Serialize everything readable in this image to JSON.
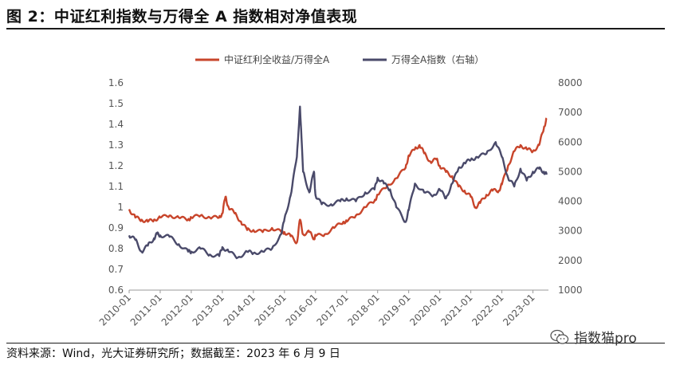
{
  "figure": {
    "title": "图 2：中证红利指数与万得全 A 指数相对净值表现",
    "source": "资料来源：Wind，光大证券研究所；数据截至：2023 年 6 月 9 日",
    "watermark": "指数猫pro",
    "watermark_icon": "wechat-icon"
  },
  "chart_data": {
    "type": "line",
    "legend_position": "top-center",
    "grid": false,
    "x_ticks": [
      "2010-01",
      "2011-01",
      "2012-01",
      "2013-01",
      "2014-01",
      "2015-01",
      "2016-01",
      "2017-01",
      "2018-01",
      "2019-01",
      "2020-01",
      "2021-01",
      "2022-01",
      "2023-01"
    ],
    "y_left": {
      "range": [
        0.6,
        1.6
      ],
      "ticks": [
        "0.6",
        "0.7",
        "0.8",
        "0.9",
        "1",
        "1.1",
        "1.2",
        "1.3",
        "1.4",
        "1.5",
        "1.6"
      ]
    },
    "y_right": {
      "range": [
        1000,
        8000
      ],
      "ticks": [
        "1000",
        "2000",
        "3000",
        "4000",
        "5000",
        "6000",
        "7000",
        "8000"
      ]
    },
    "series": [
      {
        "name": "中证红利全收益/万得全A",
        "axis": "left",
        "color": "#C8452B",
        "points": [
          [
            2010.0,
            0.99
          ],
          [
            2010.2,
            0.95
          ],
          [
            2010.4,
            0.94
          ],
          [
            2010.6,
            0.93
          ],
          [
            2010.8,
            0.94
          ],
          [
            2011.0,
            0.95
          ],
          [
            2011.3,
            0.96
          ],
          [
            2011.6,
            0.95
          ],
          [
            2011.9,
            0.94
          ],
          [
            2012.0,
            0.95
          ],
          [
            2012.3,
            0.96
          ],
          [
            2012.6,
            0.95
          ],
          [
            2012.9,
            0.95
          ],
          [
            2013.0,
            0.97
          ],
          [
            2013.1,
            1.05
          ],
          [
            2013.2,
            1.0
          ],
          [
            2013.4,
            0.97
          ],
          [
            2013.6,
            0.93
          ],
          [
            2013.8,
            0.89
          ],
          [
            2014.0,
            0.89
          ],
          [
            2014.3,
            0.88
          ],
          [
            2014.6,
            0.9
          ],
          [
            2014.9,
            0.88
          ],
          [
            2015.0,
            0.88
          ],
          [
            2015.2,
            0.86
          ],
          [
            2015.4,
            0.83
          ],
          [
            2015.5,
            0.94
          ],
          [
            2015.6,
            0.87
          ],
          [
            2015.8,
            0.88
          ],
          [
            2015.95,
            0.85
          ],
          [
            2016.0,
            0.86
          ],
          [
            2016.3,
            0.87
          ],
          [
            2016.6,
            0.9
          ],
          [
            2016.9,
            0.93
          ],
          [
            2017.0,
            0.93
          ],
          [
            2017.3,
            0.96
          ],
          [
            2017.6,
            1.0
          ],
          [
            2017.9,
            1.03
          ],
          [
            2018.0,
            1.06
          ],
          [
            2018.3,
            1.1
          ],
          [
            2018.6,
            1.14
          ],
          [
            2018.9,
            1.19
          ],
          [
            2019.0,
            1.25
          ],
          [
            2019.2,
            1.28
          ],
          [
            2019.35,
            1.3
          ],
          [
            2019.5,
            1.26
          ],
          [
            2019.7,
            1.22
          ],
          [
            2019.9,
            1.23
          ],
          [
            2020.0,
            1.2
          ],
          [
            2020.2,
            1.17
          ],
          [
            2020.4,
            1.15
          ],
          [
            2020.6,
            1.1
          ],
          [
            2020.8,
            1.08
          ],
          [
            2021.0,
            1.05
          ],
          [
            2021.15,
            1.0
          ],
          [
            2021.3,
            1.02
          ],
          [
            2021.5,
            1.06
          ],
          [
            2021.7,
            1.08
          ],
          [
            2021.9,
            1.08
          ],
          [
            2022.0,
            1.11
          ],
          [
            2022.2,
            1.2
          ],
          [
            2022.4,
            1.27
          ],
          [
            2022.6,
            1.3
          ],
          [
            2022.8,
            1.28
          ],
          [
            2023.0,
            1.27
          ],
          [
            2023.2,
            1.3
          ],
          [
            2023.35,
            1.38
          ],
          [
            2023.44,
            1.43
          ]
        ]
      },
      {
        "name": "万得全A指数（右轴）",
        "axis": "right",
        "color": "#4A4A6A",
        "points": [
          [
            2010.0,
            2850
          ],
          [
            2010.2,
            2700
          ],
          [
            2010.4,
            2300
          ],
          [
            2010.6,
            2500
          ],
          [
            2010.8,
            2750
          ],
          [
            2010.9,
            2900
          ],
          [
            2011.0,
            2850
          ],
          [
            2011.3,
            2800
          ],
          [
            2011.6,
            2550
          ],
          [
            2011.9,
            2300
          ],
          [
            2012.0,
            2300
          ],
          [
            2012.3,
            2400
          ],
          [
            2012.6,
            2200
          ],
          [
            2012.9,
            2150
          ],
          [
            2013.0,
            2450
          ],
          [
            2013.2,
            2300
          ],
          [
            2013.5,
            2100
          ],
          [
            2013.8,
            2300
          ],
          [
            2014.0,
            2250
          ],
          [
            2014.3,
            2300
          ],
          [
            2014.6,
            2400
          ],
          [
            2014.9,
            2900
          ],
          [
            2015.0,
            3400
          ],
          [
            2015.2,
            4200
          ],
          [
            2015.4,
            5500
          ],
          [
            2015.5,
            7200
          ],
          [
            2015.6,
            5000
          ],
          [
            2015.8,
            4300
          ],
          [
            2015.95,
            5000
          ],
          [
            2016.0,
            4200
          ],
          [
            2016.2,
            3900
          ],
          [
            2016.5,
            3900
          ],
          [
            2016.8,
            4000
          ],
          [
            2017.0,
            4100
          ],
          [
            2017.3,
            4000
          ],
          [
            2017.6,
            4300
          ],
          [
            2017.9,
            4400
          ],
          [
            2018.0,
            4800
          ],
          [
            2018.2,
            4600
          ],
          [
            2018.4,
            4400
          ],
          [
            2018.6,
            3800
          ],
          [
            2018.9,
            3300
          ],
          [
            2019.0,
            3700
          ],
          [
            2019.2,
            4600
          ],
          [
            2019.5,
            4300
          ],
          [
            2019.8,
            4200
          ],
          [
            2020.0,
            4400
          ],
          [
            2020.2,
            4100
          ],
          [
            2020.4,
            4600
          ],
          [
            2020.6,
            5100
          ],
          [
            2020.8,
            5300
          ],
          [
            2021.0,
            5400
          ],
          [
            2021.2,
            5500
          ],
          [
            2021.5,
            5600
          ],
          [
            2021.8,
            6000
          ],
          [
            2022.0,
            5500
          ],
          [
            2022.2,
            4800
          ],
          [
            2022.4,
            4500
          ],
          [
            2022.6,
            5100
          ],
          [
            2022.8,
            4700
          ],
          [
            2023.0,
            5000
          ],
          [
            2023.2,
            5100
          ],
          [
            2023.35,
            5000
          ],
          [
            2023.44,
            4900
          ]
        ]
      }
    ]
  }
}
